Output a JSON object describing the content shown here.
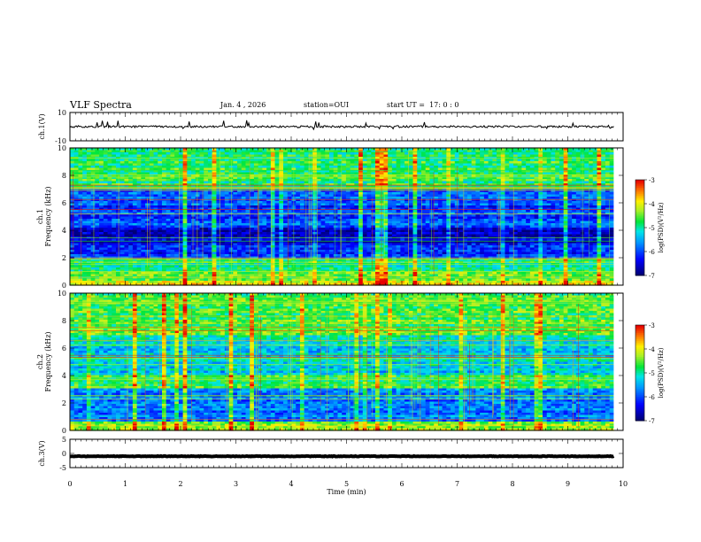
{
  "header": {
    "title": "VLF Spectra",
    "date": "Jan. 4 , 2026",
    "station_label": "station=",
    "station": "OUI",
    "start_label": "start UT =",
    "start_time": "17: 0 : 0"
  },
  "chart_data": {
    "type": "heatmap",
    "title": "VLF Spectra",
    "xlabel": "Time (min)",
    "xlim": [
      0,
      10
    ],
    "x_ticks": [
      "0",
      "1",
      "2",
      "3",
      "4",
      "5",
      "6",
      "7",
      "8",
      "9",
      "10"
    ],
    "panels": [
      {
        "name": "ch1-waveform",
        "type": "line",
        "ylabel": "ch.1(V)",
        "ylim": [
          -10,
          10
        ],
        "y_ticks": [
          "10",
          "-10"
        ],
        "mean_level": 0,
        "data_end_min": 9.83
      },
      {
        "name": "ch1-spectrogram",
        "type": "heatmap",
        "ylabel": "ch.1 Frequency (kHz)",
        "ylim": [
          0,
          10
        ],
        "y_ticks": [
          "0",
          "2",
          "4",
          "6",
          "8",
          "10"
        ],
        "data_end_min": 9.83,
        "colorbar": {
          "label": "log(PSD)(V²/Hz)",
          "range": [
            -7,
            -3
          ],
          "ticks": [
            "-3",
            "-4",
            "-5",
            "-6",
            "-7"
          ]
        },
        "bands_khz_approx": [
          {
            "range": [
              0,
              1
            ],
            "level": "high"
          },
          {
            "range": [
              1,
              2
            ],
            "level": "medium"
          },
          {
            "range": [
              2,
              3
            ],
            "level": "low"
          },
          {
            "range": [
              3,
              4.2
            ],
            "level": "very low"
          },
          {
            "range": [
              4.2,
              7
            ],
            "level": "low"
          },
          {
            "range": [
              7,
              10
            ],
            "level": "medium"
          }
        ]
      },
      {
        "name": "ch2-spectrogram",
        "type": "heatmap",
        "ylabel": "ch.2 Frequency (kHz)",
        "ylim": [
          0,
          10
        ],
        "y_ticks": [
          "0",
          "2",
          "4",
          "6",
          "8",
          "10"
        ],
        "data_end_min": 9.83,
        "colorbar": {
          "label": "log(PSD)(V²/Hz)",
          "range": [
            -7,
            -3
          ],
          "ticks": [
            "-3",
            "-4",
            "-5",
            "-6",
            "-7"
          ]
        },
        "bands_khz_approx": [
          {
            "range": [
              0,
              1
            ],
            "level": "medium-high"
          },
          {
            "range": [
              1,
              3
            ],
            "level": "low"
          },
          {
            "range": [
              3,
              4
            ],
            "level": "medium"
          },
          {
            "range": [
              4,
              7
            ],
            "level": "medium-low"
          },
          {
            "range": [
              7,
              10
            ],
            "level": "medium-high"
          }
        ]
      },
      {
        "name": "ch3-waveform",
        "type": "line",
        "ylabel": "ch.3(V)",
        "ylim": [
          -5,
          5
        ],
        "y_ticks": [
          "5",
          "0",
          "-5"
        ],
        "mean_level": -1,
        "data_end_min": 9.83
      }
    ]
  }
}
